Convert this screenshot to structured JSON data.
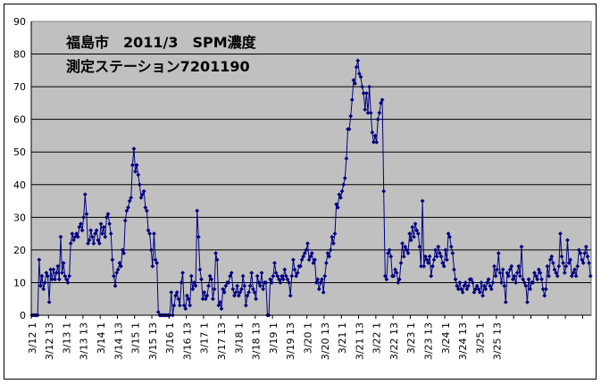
{
  "chart_data": {
    "type": "line",
    "title_line1": "福島市　2011/3　SPM濃度",
    "title_line2": "測定ステーション7201190",
    "xlabel": "",
    "ylabel": "",
    "ylim": [
      0,
      90
    ],
    "yticks": [
      0,
      10,
      20,
      30,
      40,
      50,
      60,
      70,
      80,
      90
    ],
    "grid": "horizontal",
    "plot_background": "#c0c0c0",
    "series_color": "#000080",
    "legend": "none",
    "x_tick_labels": [
      "3/12 1",
      "3/12 13",
      "3/13 1",
      "3/13 13",
      "3/14 1",
      "3/14 13",
      "3/15 1",
      "3/15 13",
      "3/16 1",
      "3/16 13",
      "3/17 1",
      "3/17 13",
      "3/18 1",
      "3/18 13",
      "3/19 1",
      "3/19 13",
      "3/20 1",
      "3/20 13",
      "3/21 1",
      "3/21 13",
      "3/22 1",
      "3/22 13",
      "3/23 1",
      "3/23 13",
      "3/24 1",
      "3/24 13",
      "3/25 1",
      "3/25 13"
    ],
    "series": [
      {
        "values": [
          0,
          0,
          0,
          0,
          0,
          17,
          9,
          12,
          8,
          10,
          13,
          12,
          4,
          14,
          11,
          14,
          11,
          13,
          15,
          11,
          24,
          13,
          16,
          12,
          11,
          10,
          12,
          22,
          25,
          23,
          24,
          25,
          24,
          27,
          28,
          26,
          30,
          37,
          31,
          22,
          23,
          26,
          24,
          22,
          25,
          26,
          23,
          22,
          28,
          25,
          27,
          24,
          30,
          31,
          28,
          25,
          17,
          12,
          9,
          13,
          14,
          16,
          15,
          20,
          19,
          29,
          32,
          33,
          35,
          36,
          46,
          51,
          44,
          46,
          43,
          40,
          36,
          37,
          38,
          33,
          32,
          26,
          25,
          20,
          15,
          25,
          17,
          16,
          1,
          0,
          0,
          0,
          0,
          0,
          0,
          0,
          0,
          7,
          0,
          3,
          6,
          7,
          5,
          3,
          10,
          13,
          3,
          2,
          6,
          5,
          3,
          12,
          8,
          10,
          9,
          32,
          24,
          14,
          11,
          5,
          7,
          5,
          6,
          9,
          12,
          11,
          5,
          8,
          19,
          17,
          3,
          4,
          2,
          8,
          7,
          9,
          10,
          10,
          12,
          13,
          8,
          6,
          7,
          9,
          6,
          7,
          8,
          12,
          9,
          3,
          6,
          7,
          9,
          13,
          8,
          7,
          5,
          12,
          10,
          9,
          13,
          8,
          10,
          10,
          0,
          0,
          11,
          10,
          12,
          16,
          13,
          12,
          11,
          10,
          12,
          11,
          14,
          12,
          11,
          10,
          6,
          12,
          17,
          14,
          12,
          13,
          15,
          15,
          17,
          18,
          19,
          20,
          22,
          17,
          18,
          19,
          16,
          17,
          10,
          11,
          8,
          10,
          11,
          7,
          12,
          16,
          19,
          18,
          20,
          24,
          22,
          25,
          34,
          33,
          37,
          36,
          38,
          40,
          42,
          48,
          57,
          57,
          61,
          66,
          72,
          71,
          76,
          78,
          74,
          73,
          70,
          68,
          63,
          68,
          62,
          70,
          62,
          56,
          53,
          55,
          53,
          60,
          62,
          65,
          66,
          38,
          12,
          11,
          19,
          20,
          18,
          12,
          12,
          14,
          13,
          10,
          11,
          16,
          22,
          18,
          21,
          20,
          19,
          25,
          23,
          27,
          24,
          28,
          26,
          25,
          21,
          15,
          35,
          15,
          18,
          17,
          16,
          18,
          12,
          15,
          17,
          20,
          18,
          21,
          19,
          18,
          16,
          15,
          20,
          17,
          25,
          24,
          21,
          19,
          14,
          11,
          9,
          8,
          10,
          8,
          7,
          9,
          10,
          8,
          9,
          11,
          11,
          10,
          7,
          8,
          9,
          8,
          7,
          10,
          6,
          9,
          8,
          10,
          11,
          9,
          8,
          10,
          15,
          12,
          14,
          19,
          13,
          10,
          14,
          9,
          4,
          13,
          12,
          14,
          15,
          11,
          12,
          10,
          13,
          15,
          12,
          21,
          11,
          10,
          9,
          4,
          11,
          8,
          10,
          10,
          13,
          12,
          11,
          14,
          13,
          11,
          8,
          6,
          8,
          15,
          12,
          17,
          18,
          16,
          14,
          13,
          12,
          15,
          25,
          18,
          16,
          13,
          15,
          23,
          16,
          17,
          12,
          13,
          14,
          12,
          15,
          20,
          19,
          17,
          16,
          19,
          21,
          18,
          16,
          12
        ]
      }
    ]
  }
}
